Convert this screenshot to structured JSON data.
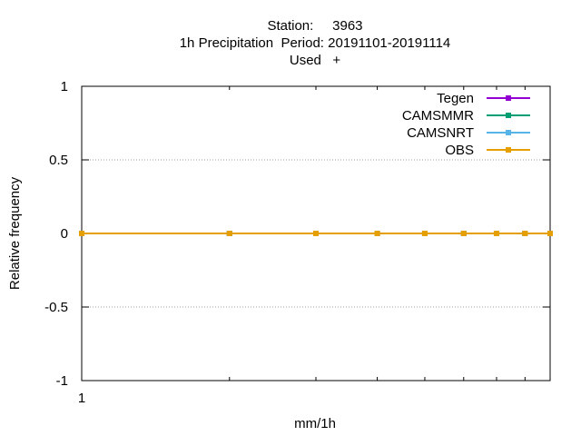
{
  "chart_data": {
    "type": "line",
    "title_lines": [
      "Station:     3963",
      "1h Precipitation  Period: 20191101-20191114",
      "Used   +"
    ],
    "xlabel": "mm/1h",
    "ylabel": "Relative frequency",
    "x_scale": "log",
    "x_ticks": [
      {
        "value": 1,
        "label": "1"
      }
    ],
    "xlim": [
      1,
      9
    ],
    "ylim": [
      -1,
      1
    ],
    "y_ticks": [
      {
        "value": 1,
        "label": "1"
      },
      {
        "value": 0.5,
        "label": "0.5"
      },
      {
        "value": 0,
        "label": "0"
      },
      {
        "value": -0.5,
        "label": "-0.5"
      },
      {
        "value": -1,
        "label": "-1"
      }
    ],
    "grid": "horizontal dotted",
    "legend_position": "top-right",
    "x": [
      1,
      2,
      3,
      4,
      5,
      6,
      7,
      8,
      9
    ],
    "series": [
      {
        "name": "Tegen",
        "color": "#9400d3",
        "values": [
          0,
          0,
          0,
          0,
          0,
          0,
          0,
          0,
          0
        ]
      },
      {
        "name": "CAMSMMR",
        "color": "#009e73",
        "values": [
          0,
          0,
          0,
          0,
          0,
          0,
          0,
          0,
          0
        ]
      },
      {
        "name": "CAMSNRT",
        "color": "#56b4e9",
        "values": [
          0,
          0,
          0,
          0,
          0,
          0,
          0,
          0,
          0
        ]
      },
      {
        "name": "OBS",
        "color": "#e69f00",
        "values": [
          0,
          0,
          0,
          0,
          0,
          0,
          0,
          0,
          0
        ]
      }
    ]
  }
}
